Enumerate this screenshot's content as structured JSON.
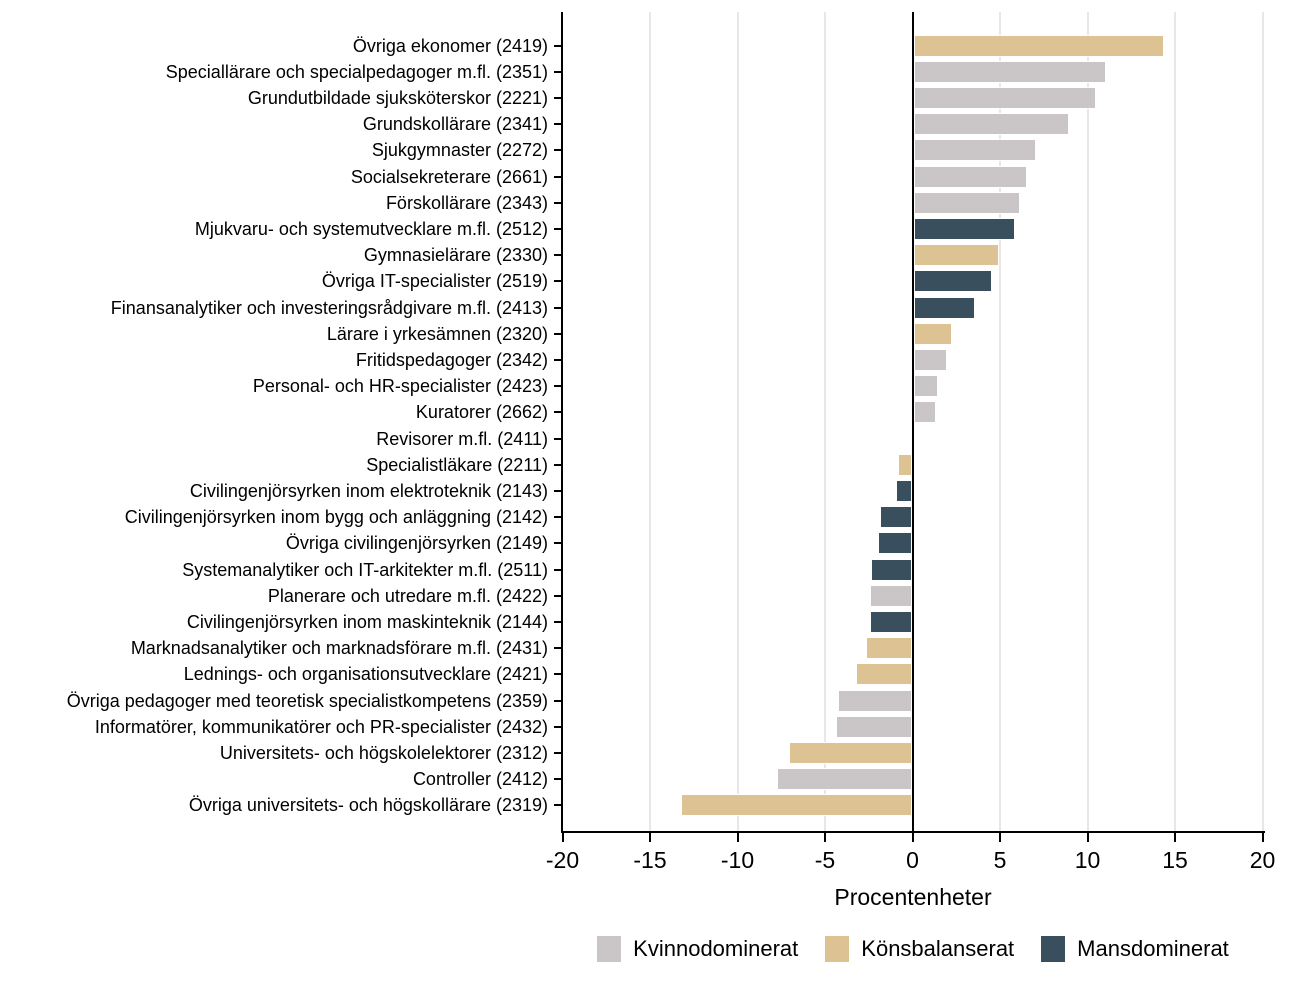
{
  "chart_data": {
    "type": "bar",
    "orientation": "horizontal",
    "title": "",
    "xlabel": "Procentenheter",
    "xlim": [
      -20,
      20
    ],
    "xticks": [
      -20,
      -15,
      -10,
      -5,
      0,
      5,
      10,
      15,
      20
    ],
    "grid": "vertical-light-gray, zero-line-black",
    "legend_position": "bottom-center",
    "legend": [
      {
        "key": "kvinnodominerat",
        "label": "Kvinnodominerat",
        "color": "#cac5c7"
      },
      {
        "key": "konsbalanserat",
        "label": "Könsbalanserat",
        "color": "#ddc394"
      },
      {
        "key": "mansdominerat",
        "label": "Mansdominerat",
        "color": "#3a4f5e"
      }
    ],
    "bars": [
      {
        "label": "Övriga ekonomer (2419)",
        "value": 14.3,
        "group": "konsbalanserat"
      },
      {
        "label": "Speciallärare och specialpedagoger m.fl. (2351)",
        "value": 11.0,
        "group": "kvinnodominerat"
      },
      {
        "label": "Grundutbildade sjuksköterskor (2221)",
        "value": 10.4,
        "group": "kvinnodominerat"
      },
      {
        "label": "Grundskollärare (2341)",
        "value": 8.9,
        "group": "kvinnodominerat"
      },
      {
        "label": "Sjukgymnaster (2272)",
        "value": 7.0,
        "group": "kvinnodominerat"
      },
      {
        "label": "Socialsekreterare (2661)",
        "value": 6.5,
        "group": "kvinnodominerat"
      },
      {
        "label": "Förskollärare (2343)",
        "value": 6.1,
        "group": "kvinnodominerat"
      },
      {
        "label": "Mjukvaru- och systemutvecklare m.fl. (2512)",
        "value": 5.8,
        "group": "mansdominerat"
      },
      {
        "label": "Gymnasielärare (2330)",
        "value": 4.9,
        "group": "konsbalanserat"
      },
      {
        "label": "Övriga IT-specialister (2519)",
        "value": 4.5,
        "group": "mansdominerat"
      },
      {
        "label": "Finansanalytiker och investeringsrådgivare m.fl. (2413)",
        "value": 3.5,
        "group": "mansdominerat"
      },
      {
        "label": "Lärare i yrkesämnen (2320)",
        "value": 2.2,
        "group": "konsbalanserat"
      },
      {
        "label": "Fritidspedagoger (2342)",
        "value": 1.9,
        "group": "kvinnodominerat"
      },
      {
        "label": "Personal- och HR-specialister (2423)",
        "value": 1.4,
        "group": "kvinnodominerat"
      },
      {
        "label": "Kuratorer (2662)",
        "value": 1.3,
        "group": "kvinnodominerat"
      },
      {
        "label": "Revisorer m.fl. (2411)",
        "value": 0,
        "group": null
      },
      {
        "label": "Specialistläkare (2211)",
        "value": -0.8,
        "group": "konsbalanserat"
      },
      {
        "label": "Civilingenjörsyrken inom elektroteknik (2143)",
        "value": -0.9,
        "group": "mansdominerat"
      },
      {
        "label": "Civilingenjörsyrken inom bygg och anläggning (2142)",
        "value": -1.8,
        "group": "mansdominerat"
      },
      {
        "label": "Övriga civilingenjörsyrken (2149)",
        "value": -1.9,
        "group": "mansdominerat"
      },
      {
        "label": "Systemanalytiker och IT-arkitekter m.fl. (2511)",
        "value": -2.3,
        "group": "mansdominerat"
      },
      {
        "label": "Planerare och utredare m.fl. (2422)",
        "value": -2.4,
        "group": "kvinnodominerat"
      },
      {
        "label": "Civilingenjörsyrken inom maskinteknik (2144)",
        "value": -2.4,
        "group": "mansdominerat"
      },
      {
        "label": "Marknadsanalytiker och marknadsförare m.fl. (2431)",
        "value": -2.6,
        "group": "konsbalanserat"
      },
      {
        "label": "Lednings- och organisationsutvecklare (2421)",
        "value": -3.2,
        "group": "konsbalanserat"
      },
      {
        "label": "Övriga pedagoger med teoretisk specialistkompetens (2359)",
        "value": -4.2,
        "group": "kvinnodominerat"
      },
      {
        "label": "Informatörer, kommunikatörer och PR-specialister (2432)",
        "value": -4.3,
        "group": "kvinnodominerat"
      },
      {
        "label": "Universitets- och högskolelektorer (2312)",
        "value": -7.0,
        "group": "konsbalanserat"
      },
      {
        "label": "Controller (2412)",
        "value": -7.7,
        "group": "kvinnodominerat"
      },
      {
        "label": "Övriga universitets- och högskollärare (2319)",
        "value": -13.2,
        "group": "konsbalanserat"
      }
    ]
  },
  "colors": {
    "background": "#ffffff",
    "axis": "#000000",
    "gridline": "#e7e7e7",
    "bar_outline": "#ffffff"
  }
}
